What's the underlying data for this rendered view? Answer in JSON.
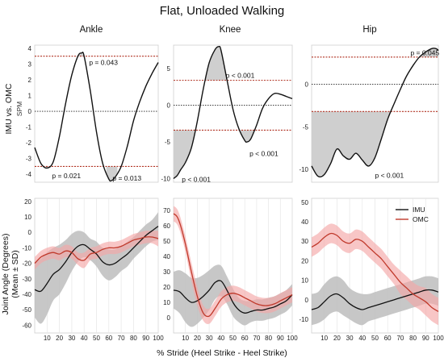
{
  "figure": {
    "title": "Flat, Unloaded Walking",
    "columns": [
      "Ankle",
      "Knee",
      "Hip"
    ],
    "row_top_ylabel": "IMU vs. OMC",
    "row_top_ysublabel": "SPM",
    "row_bottom_ylabel": "Joint Angle (Degrees)",
    "row_bottom_ysublabel": "(Mean ± SD)",
    "xlabel": "% Stride (Heel Strike - Heel Strike)",
    "legend": [
      {
        "label": "IMU",
        "color": "#111111"
      },
      {
        "label": "OMC",
        "color": "#c0392b"
      }
    ],
    "colors": {
      "imu": "#111111",
      "omc": "#c0392b",
      "imu_band": "#bdbdbd",
      "omc_band": "#f4a7a7",
      "threshold": "#b03020",
      "spm_fill": "#cfcfcf"
    }
  },
  "chart_data": [
    {
      "type": "line",
      "id": "spm-ankle",
      "title": "Ankle",
      "ylim": [
        -4.5,
        4.2
      ],
      "yticks": [
        -4,
        -3,
        -2,
        -1,
        0,
        1,
        2,
        3,
        4
      ],
      "xlim": [
        0,
        100
      ],
      "threshold": 3.5,
      "x": [
        0,
        5,
        10,
        15,
        20,
        25,
        30,
        35,
        38,
        40,
        45,
        50,
        55,
        60,
        62,
        65,
        70,
        75,
        80,
        85,
        90,
        95,
        100
      ],
      "y": [
        -2.3,
        -3.3,
        -3.6,
        -3.2,
        -1.6,
        0.5,
        2.3,
        3.5,
        3.7,
        3.5,
        1.3,
        -1.3,
        -3.3,
        -4.3,
        -4.4,
        -4.2,
        -3.5,
        -2.2,
        -0.6,
        0.6,
        1.6,
        2.4,
        3.1
      ],
      "significant": [
        [
          34,
          43
        ],
        [
          7,
          14
        ],
        [
          58,
          67
        ]
      ],
      "annotations": [
        {
          "text": "p = 0.043",
          "x": 44,
          "y": 3.1
        },
        {
          "text": "p = 0.021",
          "x": 14,
          "y": -4.1
        },
        {
          "text": "p = 0.013",
          "x": 63,
          "y": -4.25
        }
      ]
    },
    {
      "type": "line",
      "id": "spm-knee",
      "title": "Knee",
      "ylim": [
        -10.5,
        8.2
      ],
      "yticks": [
        -10,
        -5,
        0,
        5
      ],
      "xlim": [
        0,
        100
      ],
      "threshold": 3.4,
      "x": [
        0,
        3,
        6,
        10,
        15,
        20,
        25,
        30,
        35,
        38,
        40,
        45,
        50,
        55,
        60,
        62,
        65,
        70,
        75,
        80,
        85,
        90,
        95,
        100
      ],
      "y": [
        -10,
        -9.6,
        -8.8,
        -7.8,
        -5.8,
        -2.2,
        2.2,
        5.8,
        7.6,
        8,
        7.5,
        3.5,
        -0.5,
        -3.2,
        -4.8,
        -5,
        -4.6,
        -2.7,
        -0.4,
        0.9,
        1.6,
        1.5,
        1.2,
        0.9
      ],
      "significant": [
        [
          0,
          22
        ],
        [
          24,
          45
        ],
        [
          53,
          70
        ]
      ],
      "annotations": [
        {
          "text": "p < 0.001",
          "x": 44,
          "y": 4.1
        },
        {
          "text": "p < 0.001",
          "x": 64,
          "y": -6.6
        },
        {
          "text": "p < 0.001",
          "x": 7,
          "y": -10.1
        }
      ]
    },
    {
      "type": "line",
      "id": "spm-hip",
      "title": "Hip",
      "ylim": [
        -11.5,
        4.6
      ],
      "yticks": [
        -10,
        -5,
        0
      ],
      "xlim": [
        0,
        100
      ],
      "threshold": 3.2,
      "x": [
        0,
        5,
        10,
        15,
        20,
        25,
        30,
        35,
        40,
        45,
        50,
        55,
        60,
        65,
        70,
        75,
        80,
        85,
        90,
        95,
        98,
        100
      ],
      "y": [
        -9.6,
        -10.8,
        -10.6,
        -9.3,
        -7.6,
        -8.4,
        -8.8,
        -8.1,
        -8.9,
        -9.6,
        -8.6,
        -6.4,
        -4.1,
        -2.3,
        -0.6,
        1,
        2.2,
        3.2,
        3.8,
        4.2,
        4.2,
        4
      ],
      "significant": [
        [
          0,
          69
        ],
        [
          86,
          100
        ]
      ],
      "annotations": [
        {
          "text": "p = 0.045",
          "x": 78,
          "y": 3.7
        },
        {
          "text": "p < 0.001",
          "x": 50,
          "y": -10.7
        }
      ]
    },
    {
      "type": "area",
      "id": "angle-ankle",
      "ylim": [
        -65,
        22
      ],
      "yticks": [
        -60,
        -50,
        -40,
        -30,
        -20,
        -10,
        0,
        10,
        20
      ],
      "xlim": [
        0,
        100
      ],
      "xticks": [
        10,
        20,
        30,
        40,
        50,
        60,
        70,
        80,
        90,
        100
      ],
      "series": [
        {
          "name": "IMU",
          "x": [
            0,
            5,
            10,
            15,
            20,
            25,
            30,
            35,
            40,
            45,
            50,
            55,
            60,
            65,
            70,
            75,
            80,
            85,
            90,
            95,
            100
          ],
          "mean": [
            -37,
            -38,
            -33,
            -27,
            -24,
            -19,
            -13,
            -9,
            -8,
            -11,
            -14,
            -19,
            -21,
            -20,
            -17,
            -14,
            -10,
            -6,
            -2,
            1,
            4
          ],
          "sd": [
            18,
            21,
            20,
            17,
            16,
            14,
            12,
            10,
            8,
            7,
            8,
            9,
            10,
            9,
            8,
            8,
            7,
            7,
            7,
            7,
            9
          ]
        },
        {
          "name": "OMC",
          "x": [
            0,
            5,
            10,
            15,
            20,
            25,
            30,
            35,
            40,
            45,
            50,
            55,
            60,
            65,
            70,
            75,
            80,
            85,
            90,
            95,
            100
          ],
          "mean": [
            -20,
            -16,
            -14,
            -13,
            -14,
            -12,
            -13,
            -17,
            -18,
            -14,
            -13,
            -11,
            -10,
            -10,
            -9,
            -7,
            -5,
            -4,
            -3,
            -3,
            -4
          ],
          "sd": [
            4,
            4,
            4,
            4,
            4,
            4,
            4,
            4,
            5,
            4,
            4,
            4,
            4,
            4,
            4,
            4,
            4,
            4,
            4,
            4,
            5
          ]
        }
      ]
    },
    {
      "type": "area",
      "id": "angle-knee",
      "ylim": [
        -10,
        78
      ],
      "yticks": [
        0,
        10,
        20,
        30,
        40,
        50,
        60,
        70
      ],
      "xlim": [
        0,
        100
      ],
      "xticks": [
        10,
        20,
        30,
        40,
        50,
        60,
        70,
        80,
        90,
        100
      ],
      "series": [
        {
          "name": "IMU",
          "x": [
            0,
            5,
            10,
            15,
            20,
            25,
            30,
            35,
            40,
            45,
            50,
            55,
            60,
            65,
            70,
            75,
            80,
            85,
            90,
            95,
            100
          ],
          "mean": [
            18,
            17,
            13,
            10,
            11,
            14,
            18,
            23,
            24,
            18,
            10,
            5,
            3,
            4,
            5,
            5,
            6,
            7,
            9,
            11,
            15
          ],
          "sd": [
            12,
            14,
            16,
            16,
            15,
            14,
            13,
            11,
            10,
            9,
            9,
            8,
            8,
            7,
            7,
            7,
            7,
            7,
            7,
            7,
            7
          ]
        },
        {
          "name": "OMC",
          "x": [
            0,
            3,
            6,
            10,
            15,
            20,
            25,
            30,
            35,
            40,
            45,
            50,
            55,
            60,
            65,
            70,
            75,
            80,
            85,
            90,
            95,
            100
          ],
          "mean": [
            68,
            66,
            60,
            48,
            30,
            14,
            3,
            1,
            6,
            12,
            15,
            16,
            15,
            13,
            11,
            9,
            8,
            8,
            9,
            11,
            13,
            15
          ],
          "sd": [
            5,
            5,
            5,
            5,
            6,
            6,
            5,
            5,
            5,
            5,
            5,
            5,
            5,
            5,
            5,
            5,
            5,
            5,
            5,
            5,
            5,
            5
          ]
        }
      ]
    },
    {
      "type": "area",
      "id": "angle-hip",
      "ylim": [
        -17,
        52
      ],
      "yticks": [
        -10,
        0,
        10,
        20,
        30,
        40,
        50
      ],
      "xlim": [
        0,
        100
      ],
      "xticks": [
        10,
        20,
        30,
        40,
        50,
        60,
        70,
        80,
        90,
        100
      ],
      "series": [
        {
          "name": "IMU",
          "x": [
            0,
            5,
            10,
            15,
            20,
            25,
            30,
            35,
            40,
            45,
            50,
            55,
            60,
            65,
            70,
            75,
            80,
            85,
            90,
            95,
            100
          ],
          "mean": [
            -5,
            -4,
            -1,
            2,
            3,
            1,
            -2,
            -4,
            -5,
            -4,
            -3,
            -2,
            -1,
            0,
            1,
            2,
            3,
            4,
            5,
            5,
            4
          ],
          "sd": [
            8,
            8,
            9,
            9,
            9,
            9,
            8,
            8,
            8,
            7,
            7,
            7,
            7,
            7,
            7,
            7,
            7,
            7,
            7,
            7,
            7
          ]
        },
        {
          "name": "OMC",
          "x": [
            0,
            5,
            10,
            15,
            20,
            25,
            30,
            35,
            40,
            45,
            50,
            55,
            60,
            65,
            70,
            75,
            80,
            85,
            90,
            95,
            100
          ],
          "mean": [
            27,
            29,
            32,
            34,
            33,
            30,
            29,
            31,
            30,
            27,
            24,
            21,
            17,
            13,
            9,
            6,
            3,
            1,
            -1,
            -4,
            -6
          ],
          "sd": [
            5,
            5,
            5,
            5,
            5,
            5,
            5,
            5,
            5,
            5,
            5,
            5,
            5,
            5,
            6,
            6,
            6,
            6,
            7,
            7,
            7
          ]
        }
      ]
    }
  ]
}
